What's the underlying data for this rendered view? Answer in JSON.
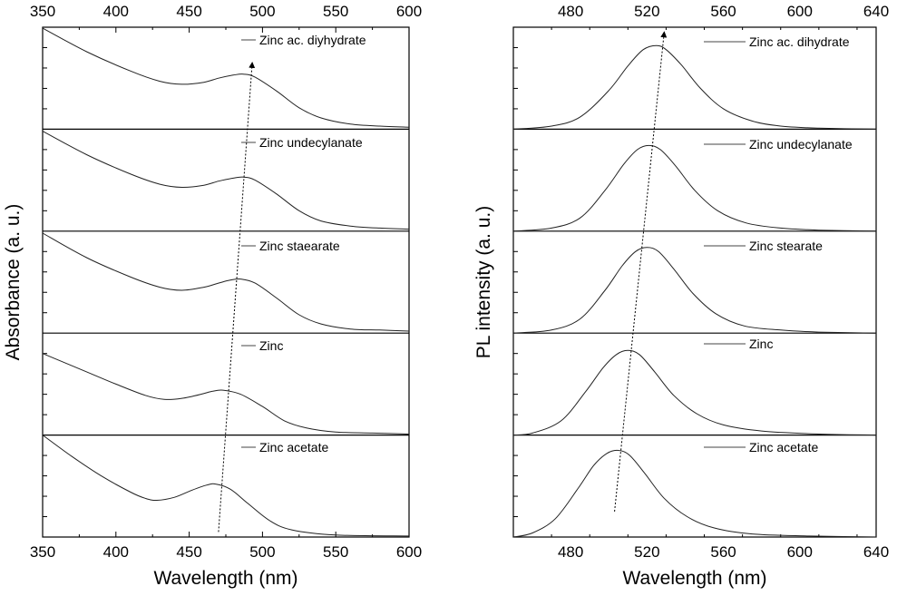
{
  "chart_data": [
    {
      "type": "line",
      "layout": "stacked-panels",
      "xlabel": "Wavelength (nm)",
      "ylabel": "Absorbance (a. u.)",
      "xlim": [
        350,
        600
      ],
      "xticks": [
        350,
        400,
        450,
        500,
        550,
        600
      ],
      "y_tick_labels_shown": false,
      "panels": [
        {
          "name": "Zinc ac. diyhydrate",
          "x": [
            350,
            380,
            410,
            430,
            445,
            460,
            470,
            480,
            487,
            495,
            510,
            525,
            540,
            560,
            580,
            600
          ],
          "y": [
            0.99,
            0.76,
            0.57,
            0.47,
            0.44,
            0.46,
            0.5,
            0.53,
            0.54,
            0.51,
            0.37,
            0.21,
            0.11,
            0.05,
            0.03,
            0.02
          ]
        },
        {
          "name": "Zinc undecylanate",
          "x": [
            350,
            380,
            410,
            430,
            445,
            460,
            470,
            480,
            487,
            495,
            510,
            525,
            540,
            560,
            580,
            600
          ],
          "y": [
            0.98,
            0.75,
            0.56,
            0.46,
            0.43,
            0.45,
            0.49,
            0.52,
            0.53,
            0.5,
            0.36,
            0.2,
            0.1,
            0.05,
            0.03,
            0.02
          ]
        },
        {
          "name": "Zinc staearate",
          "x": [
            350,
            380,
            410,
            430,
            445,
            460,
            470,
            478,
            485,
            495,
            510,
            525,
            540,
            560,
            580,
            600
          ],
          "y": [
            0.98,
            0.74,
            0.55,
            0.45,
            0.42,
            0.45,
            0.49,
            0.52,
            0.53,
            0.49,
            0.34,
            0.18,
            0.09,
            0.04,
            0.03,
            0.02
          ]
        },
        {
          "name": "Zinc",
          "x": [
            350,
            380,
            400,
            420,
            433,
            445,
            458,
            466,
            473,
            485,
            500,
            515,
            530,
            550,
            575,
            600
          ],
          "y": [
            0.8,
            0.62,
            0.5,
            0.39,
            0.35,
            0.36,
            0.4,
            0.43,
            0.44,
            0.4,
            0.28,
            0.14,
            0.07,
            0.03,
            0.02,
            0.01
          ]
        },
        {
          "name": "Zinc acetate",
          "x": [
            350,
            370,
            390,
            410,
            420,
            428,
            440,
            452,
            462,
            468,
            478,
            490,
            505,
            520,
            550,
            600
          ],
          "y": [
            1.0,
            0.79,
            0.6,
            0.44,
            0.38,
            0.36,
            0.39,
            0.46,
            0.51,
            0.52,
            0.47,
            0.33,
            0.16,
            0.07,
            0.02,
            0.01
          ]
        }
      ],
      "trend_arrow": {
        "style": "dotted",
        "from": [
          470,
          "Zinc acetate",
          0.05
        ],
        "to": [
          493,
          "Zinc ac. diyhydrate",
          0.65
        ]
      }
    },
    {
      "type": "line",
      "layout": "stacked-panels",
      "xlabel": "Wavelength (nm)",
      "ylabel": "PL intensity (a. u.)",
      "xlim": [
        450,
        640
      ],
      "xticks": [
        480,
        520,
        560,
        600,
        640
      ],
      "y_tick_labels_shown": false,
      "panels": [
        {
          "name": "Zinc ac. dihydrate",
          "x": [
            450,
            470,
            485,
            500,
            510,
            518,
            525,
            530,
            538,
            548,
            560,
            575,
            590,
            610,
            640
          ],
          "y": [
            0.0,
            0.03,
            0.12,
            0.38,
            0.62,
            0.78,
            0.82,
            0.78,
            0.63,
            0.4,
            0.2,
            0.08,
            0.03,
            0.01,
            0.0
          ]
        },
        {
          "name": "Zinc undecylanate",
          "x": [
            450,
            470,
            485,
            498,
            508,
            515,
            521,
            527,
            535,
            545,
            557,
            572,
            590,
            610,
            640
          ],
          "y": [
            0.0,
            0.03,
            0.13,
            0.4,
            0.66,
            0.8,
            0.84,
            0.8,
            0.64,
            0.4,
            0.2,
            0.08,
            0.03,
            0.01,
            0.0
          ]
        },
        {
          "name": "Zinc stearate",
          "x": [
            450,
            470,
            485,
            498,
            507,
            514,
            520,
            526,
            534,
            544,
            556,
            571,
            590,
            610,
            640
          ],
          "y": [
            0.0,
            0.03,
            0.14,
            0.42,
            0.66,
            0.8,
            0.84,
            0.8,
            0.63,
            0.39,
            0.19,
            0.07,
            0.03,
            0.01,
            0.0
          ]
        },
        {
          "name": "Zinc",
          "x": [
            450,
            460,
            475,
            488,
            497,
            504,
            510,
            516,
            524,
            534,
            546,
            560,
            580,
            610,
            640
          ],
          "y": [
            0.0,
            0.02,
            0.14,
            0.43,
            0.66,
            0.79,
            0.83,
            0.79,
            0.62,
            0.39,
            0.21,
            0.1,
            0.04,
            0.01,
            0.0
          ]
        },
        {
          "name": "Zinc acetate",
          "x": [
            450,
            460,
            472,
            484,
            492,
            499,
            505,
            511,
            519,
            529,
            541,
            555,
            575,
            605,
            640
          ],
          "y": [
            0.0,
            0.04,
            0.18,
            0.48,
            0.7,
            0.82,
            0.85,
            0.8,
            0.62,
            0.38,
            0.2,
            0.09,
            0.03,
            0.01,
            0.0
          ]
        }
      ],
      "trend_arrow": {
        "style": "dotted",
        "from": [
          503,
          "Zinc acetate",
          0.25
        ],
        "to": [
          529,
          "Zinc ac. dihydrate",
          0.95
        ]
      }
    }
  ]
}
